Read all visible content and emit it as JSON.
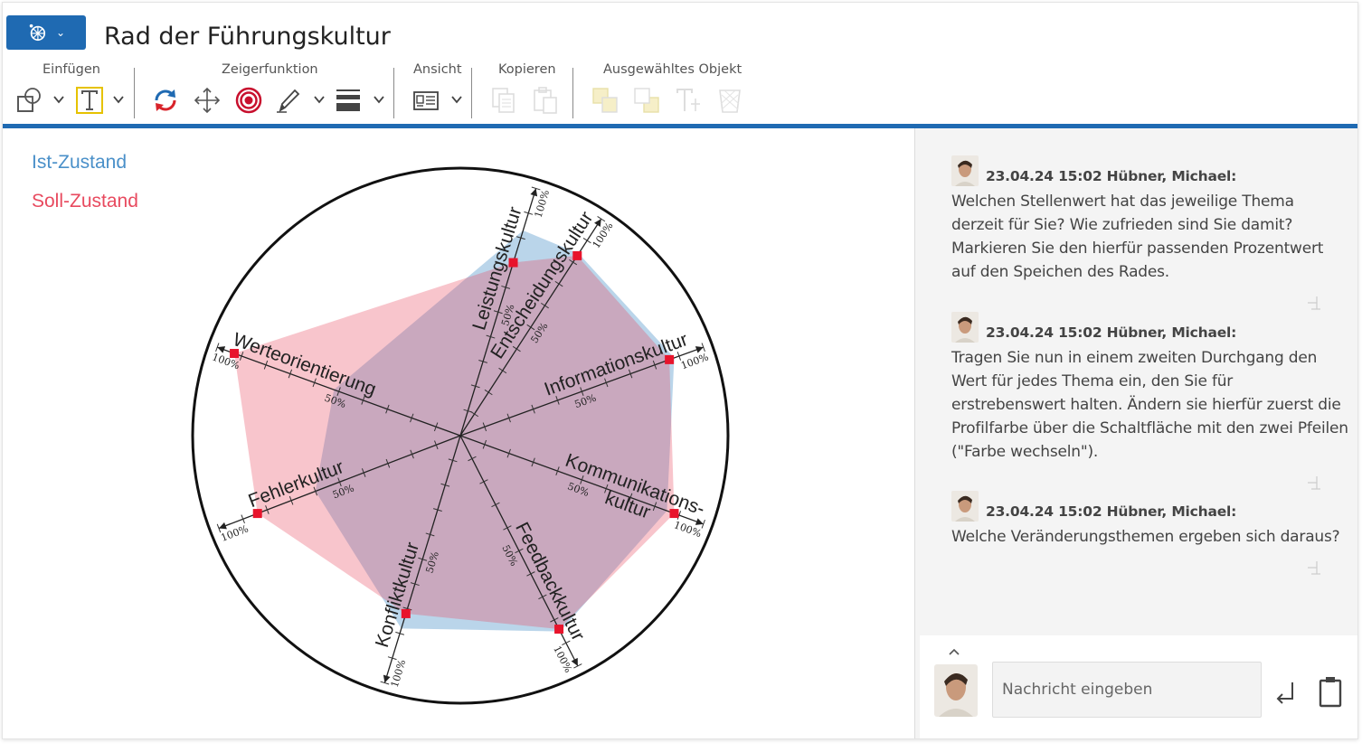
{
  "header": {
    "title": "Rad der Führungskultur",
    "groups": {
      "insert": "Einfügen",
      "pointer": "Zeigerfunktion",
      "view": "Ansicht",
      "copy": "Kopieren",
      "selected": "Ausgewähltes Objekt"
    }
  },
  "legend": {
    "ist": "Ist-Zustand",
    "soll": "Soll-Zustand"
  },
  "wheel": {
    "spokes": [
      {
        "label": "Leistungskultur",
        "mid": "50%",
        "end": "100%"
      },
      {
        "label": "Entscheidungskultur",
        "mid": "50%",
        "end": "100%"
      },
      {
        "label": "Informationskultur",
        "mid": "50%",
        "end": "100%"
      },
      {
        "label_line1": "Kommunikations-",
        "label_line2": "kultur",
        "mid": "50%",
        "end": "100%"
      },
      {
        "label": "Feedbackkultur",
        "mid": "50%",
        "end": "100%"
      },
      {
        "label": "Konfliktkultur",
        "mid": "50%",
        "end": "100%"
      },
      {
        "label": "Fehlerkultur",
        "mid": "50%",
        "end": "100%"
      },
      {
        "label": "Werteorientierung",
        "mid": "50%",
        "end": "100%"
      }
    ],
    "ist_values_pct": [
      83,
      84,
      88,
      85,
      85,
      78,
      60,
      52
    ],
    "soll_values_pct": [
      70,
      83,
      86,
      88,
      84,
      72,
      84,
      93
    ],
    "ist_color": "#4a90c9",
    "soll_color": "#e84a5f",
    "marker_color": "#e8142c"
  },
  "chat": {
    "messages": [
      {
        "meta": "23.04.24 15:02 Hübner, Michael:",
        "text": "Welchen Stellenwert hat das jeweilige Thema derzeit für Sie? Wie zufrieden sind Sie damit? Markieren Sie den hierfür passenden Prozentwert auf den Speichen des Rades."
      },
      {
        "meta": "23.04.24 15:02 Hübner, Michael:",
        "text": "Tragen Sie nun in einem zweiten Durchgang den Wert für jedes Thema ein, den Sie für erstrebenswert halten. Ändern sie hierfür zuerst die Profilfarbe über die Schaltfläche mit den zwei Pfeilen (\"Farbe wechseln\")."
      },
      {
        "meta": "23.04.24 15:02 Hübner, Michael:",
        "text": "Welche Veränderungsthemen ergeben sich daraus?"
      }
    ],
    "input_placeholder": "Nachricht eingeben"
  },
  "icons": {
    "app": "wheel-icon",
    "insert_shape": "shapes-icon",
    "insert_text": "text-icon",
    "switch_color": "switch-color-icon",
    "move": "move-icon",
    "pointer": "target-icon",
    "pen": "pen-icon",
    "line_style": "line-style-icon",
    "view": "view-icon",
    "copy": "copy-icon",
    "paste": "paste-icon",
    "bring_front": "bring-front-icon",
    "send_back": "send-back-icon",
    "edit_text": "edit-text-icon",
    "delete": "delete-icon",
    "send": "send-icon",
    "clipboard": "clipboard-icon",
    "pin": "pin-icon",
    "collapse": "chevron-up-icon"
  }
}
